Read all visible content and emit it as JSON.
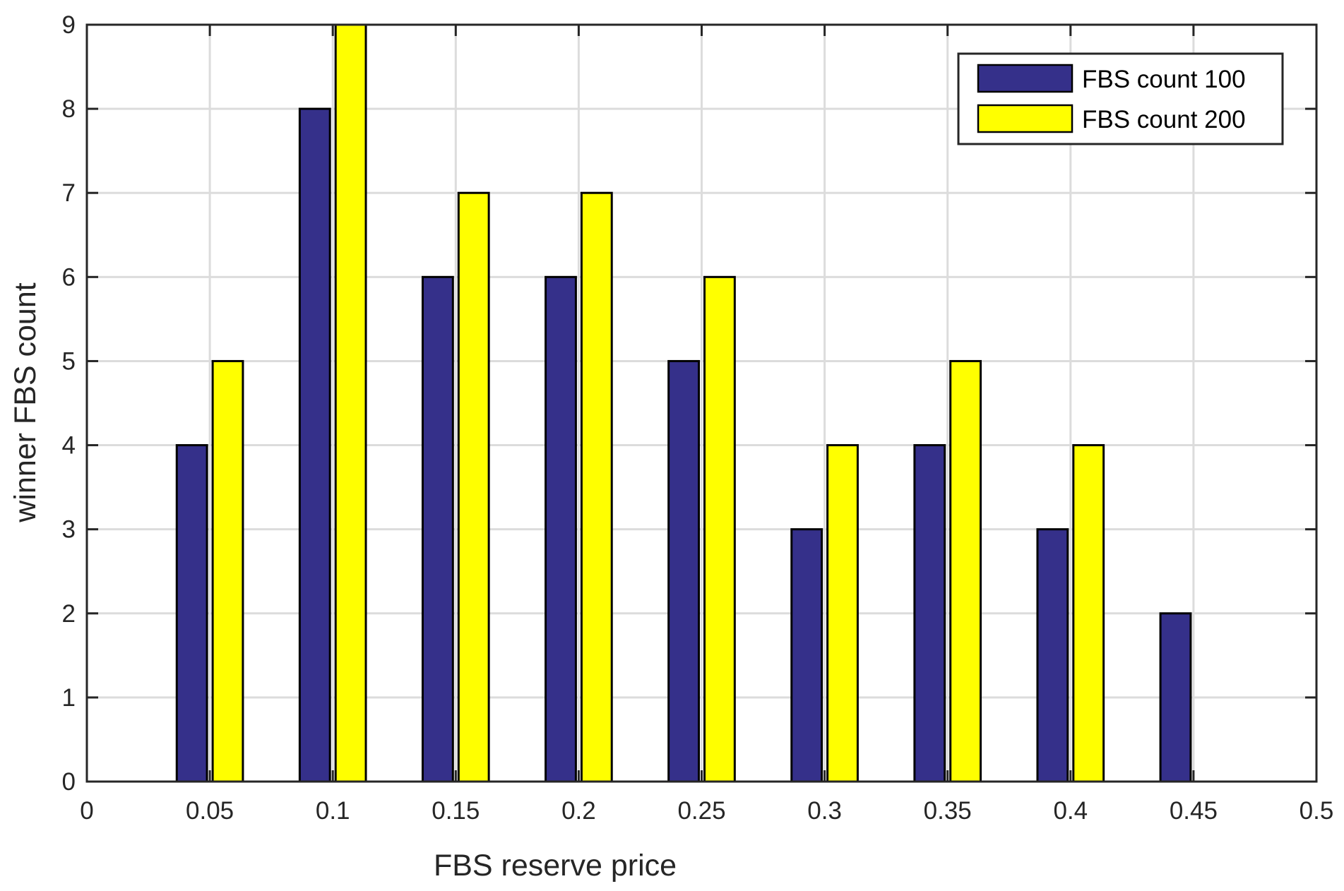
{
  "chart_data": {
    "type": "bar",
    "xlabel": "FBS reserve price",
    "ylabel": "winner FBS count",
    "xlim": [
      0,
      0.5
    ],
    "ylim": [
      0,
      9
    ],
    "x": [
      0.05,
      0.1,
      0.15,
      0.2,
      0.25,
      0.3,
      0.35,
      0.4,
      0.45
    ],
    "x_ticks": [
      "0",
      "0.05",
      "0.1",
      "0.15",
      "0.2",
      "0.25",
      "0.3",
      "0.35",
      "0.4",
      "0.45",
      "0.5"
    ],
    "y_ticks": [
      "0",
      "1",
      "2",
      "3",
      "4",
      "5",
      "6",
      "7",
      "8",
      "9"
    ],
    "grid": true,
    "legend_position": "top-right",
    "series": [
      {
        "name": "FBS count 100",
        "color": "#35308a",
        "values": [
          4,
          8,
          6,
          6,
          5,
          3,
          4,
          3,
          2
        ]
      },
      {
        "name": "FBS count 200",
        "color": "#ffff00",
        "values": [
          5,
          9,
          7,
          7,
          6,
          4,
          5,
          4,
          0
        ]
      }
    ]
  }
}
